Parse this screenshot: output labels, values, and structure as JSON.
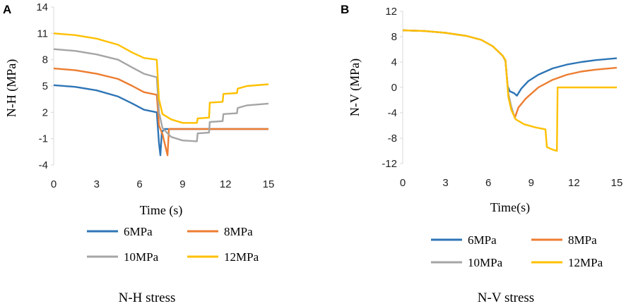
{
  "chart_data": [
    {
      "type": "line",
      "panel_label": "A",
      "title": "N-H stress",
      "xlabel": "Time (s)",
      "ylabel": "N-H (MPa)",
      "xlim": [
        0,
        15
      ],
      "ylim": [
        -4,
        14
      ],
      "xticks": [
        0,
        3,
        6,
        9,
        12,
        15
      ],
      "yticks": [
        -4,
        -1,
        2,
        5,
        8,
        11,
        14
      ],
      "legend": [
        "6MPa",
        "8MPa",
        "10MPa",
        "12MPa"
      ],
      "series": [
        {
          "name": "6MPa",
          "color": "#2e75b6",
          "points": [
            [
              0,
              5.1
            ],
            [
              1.5,
              4.9
            ],
            [
              3,
              4.5
            ],
            [
              4.5,
              3.8
            ],
            [
              5.5,
              3.0
            ],
            [
              6.3,
              2.3
            ],
            [
              7.2,
              2.0
            ],
            [
              7.35,
              -1.5
            ],
            [
              7.45,
              -2.9
            ],
            [
              7.55,
              -0.3
            ],
            [
              7.7,
              0.1
            ],
            [
              8,
              0.1
            ],
            [
              9,
              0.1
            ],
            [
              12,
              0.1
            ],
            [
              15,
              0.1
            ]
          ]
        },
        {
          "name": "8MPa",
          "color": "#ed7d31",
          "points": [
            [
              0,
              7.0
            ],
            [
              1.5,
              6.8
            ],
            [
              3,
              6.4
            ],
            [
              4.5,
              5.8
            ],
            [
              5.5,
              5.0
            ],
            [
              6.3,
              4.3
            ],
            [
              7.2,
              4.0
            ],
            [
              7.35,
              0.5
            ],
            [
              7.6,
              -0.5
            ],
            [
              7.95,
              -2.9
            ],
            [
              8.05,
              0.1
            ],
            [
              9,
              0.1
            ],
            [
              12,
              0.1
            ],
            [
              15,
              0.1
            ]
          ]
        },
        {
          "name": "10MPa",
          "color": "#a5a5a5",
          "points": [
            [
              0,
              9.2
            ],
            [
              1.5,
              9.0
            ],
            [
              3,
              8.6
            ],
            [
              4.5,
              8.0
            ],
            [
              5.5,
              7.1
            ],
            [
              6.3,
              6.4
            ],
            [
              7.2,
              6.0
            ],
            [
              7.35,
              2.0
            ],
            [
              7.6,
              0.2
            ],
            [
              8.2,
              -0.8
            ],
            [
              9,
              -1.2
            ],
            [
              10,
              -1.3
            ],
            [
              10.05,
              -0.4
            ],
            [
              10.85,
              -0.3
            ],
            [
              10.9,
              0.9
            ],
            [
              11.8,
              1.0
            ],
            [
              11.85,
              1.8
            ],
            [
              12.8,
              1.9
            ],
            [
              12.85,
              2.5
            ],
            [
              13.5,
              2.8
            ],
            [
              15,
              3.0
            ]
          ]
        },
        {
          "name": "12MPa",
          "color": "#ffc000",
          "points": [
            [
              0,
              11.0
            ],
            [
              1.5,
              10.8
            ],
            [
              3,
              10.4
            ],
            [
              4.5,
              9.7
            ],
            [
              5.5,
              8.8
            ],
            [
              6.3,
              8.2
            ],
            [
              7.2,
              8.0
            ],
            [
              7.35,
              3.5
            ],
            [
              7.6,
              1.8
            ],
            [
              8.2,
              1.2
            ],
            [
              9,
              0.8
            ],
            [
              10,
              0.8
            ],
            [
              10.05,
              1.3
            ],
            [
              10.85,
              1.4
            ],
            [
              10.9,
              3.1
            ],
            [
              11.8,
              3.2
            ],
            [
              11.85,
              4.1
            ],
            [
              12.8,
              4.2
            ],
            [
              12.85,
              4.7
            ],
            [
              13.5,
              5.0
            ],
            [
              15,
              5.2
            ]
          ]
        }
      ]
    },
    {
      "type": "line",
      "panel_label": "B",
      "title": "N-V stress",
      "xlabel": "Time(s)",
      "ylabel": "N-V (MPa)",
      "xlim": [
        0,
        15
      ],
      "ylim": [
        -12,
        12
      ],
      "xticks": [
        0,
        3,
        6,
        9,
        12,
        15
      ],
      "yticks": [
        -12,
        -8,
        -4,
        0,
        4,
        8,
        12
      ],
      "legend": [
        "6MPa",
        "8MPa",
        "10MPa",
        "12MPa"
      ],
      "series": [
        {
          "name": "6MPa",
          "color": "#2e75b6",
          "points": [
            [
              0,
              9.0
            ],
            [
              1.5,
              8.9
            ],
            [
              3,
              8.6
            ],
            [
              4.5,
              8.1
            ],
            [
              5.5,
              7.5
            ],
            [
              6.3,
              6.5
            ],
            [
              7.0,
              5.0
            ],
            [
              7.2,
              4.2
            ],
            [
              7.35,
              0.2
            ],
            [
              7.5,
              -0.6
            ],
            [
              7.8,
              -0.9
            ],
            [
              8.0,
              -1.3
            ],
            [
              8.3,
              -0.2
            ],
            [
              8.8,
              1.0
            ],
            [
              9.5,
              2.0
            ],
            [
              10.5,
              3.0
            ],
            [
              11.5,
              3.6
            ],
            [
              12.5,
              4.0
            ],
            [
              13.5,
              4.3
            ],
            [
              15,
              4.6
            ]
          ]
        },
        {
          "name": "8MPa",
          "color": "#ed7d31",
          "points": [
            [
              0,
              9.0
            ],
            [
              1.5,
              8.9
            ],
            [
              3,
              8.6
            ],
            [
              4.5,
              8.1
            ],
            [
              5.5,
              7.5
            ],
            [
              6.3,
              6.5
            ],
            [
              7.0,
              5.0
            ],
            [
              7.2,
              4.2
            ],
            [
              7.4,
              -1.0
            ],
            [
              7.6,
              -3.0
            ],
            [
              7.85,
              -4.8
            ],
            [
              8.1,
              -3.2
            ],
            [
              8.6,
              -1.8
            ],
            [
              9.5,
              0.0
            ],
            [
              10.5,
              1.2
            ],
            [
              11.5,
              2.0
            ],
            [
              12.5,
              2.5
            ],
            [
              13.5,
              2.8
            ],
            [
              15,
              3.1
            ]
          ]
        },
        {
          "name": "10MPa",
          "color": "#a5a5a5",
          "points": [
            [
              0,
              9.0
            ],
            [
              1.5,
              8.9
            ],
            [
              3,
              8.6
            ],
            [
              4.5,
              8.1
            ],
            [
              5.5,
              7.5
            ],
            [
              6.3,
              6.5
            ],
            [
              7.0,
              5.0
            ],
            [
              7.2,
              4.2
            ],
            [
              7.4,
              -1.0
            ],
            [
              7.6,
              -3.0
            ],
            [
              7.85,
              -4.8
            ]
          ]
        },
        {
          "name": "12MPa",
          "color": "#ffc000",
          "points": [
            [
              0,
              9.0
            ],
            [
              1.5,
              8.9
            ],
            [
              3,
              8.6
            ],
            [
              4.5,
              8.1
            ],
            [
              5.5,
              7.5
            ],
            [
              6.3,
              6.5
            ],
            [
              7.0,
              5.0
            ],
            [
              7.2,
              4.3
            ],
            [
              7.4,
              -1.5
            ],
            [
              7.6,
              -3.5
            ],
            [
              7.9,
              -5.0
            ],
            [
              8.5,
              -5.8
            ],
            [
              9.3,
              -6.3
            ],
            [
              10.0,
              -6.6
            ],
            [
              10.1,
              -9.4
            ],
            [
              10.5,
              -9.8
            ],
            [
              10.8,
              -10.0
            ],
            [
              10.85,
              0.0
            ],
            [
              11.5,
              0.0
            ],
            [
              15,
              0.0
            ]
          ]
        }
      ]
    }
  ]
}
